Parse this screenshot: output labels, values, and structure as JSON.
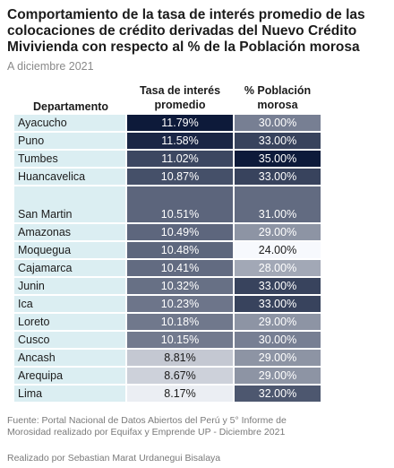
{
  "title": "Comportamiento de la tasa de interés promedio de las colocaciones de crédito derivadas del Nuevo Crédito Mivivienda con respecto al % de la Población morosa",
  "subtitle": "A diciembre 2021",
  "source": "Fuente: Portal Nacional de Datos Abiertos del Perú y 5° Informe de Morosidad realizado por Equifax y Emprende UP - Diciembre 2021",
  "credit": "Realizado por Sebastian Marat Urdanegui Bisalaya",
  "chart_data": {
    "type": "heatmap",
    "columns": [
      "Departamento",
      "Tasa de interés promedio",
      "% Población morosa"
    ],
    "rows": [
      {
        "dept": "Ayacucho",
        "rate": "11.79%",
        "pct": "30.00%",
        "rate_value": 11.79,
        "pct_value": 30
      },
      {
        "dept": "Puno",
        "rate": "11.58%",
        "pct": "33.00%",
        "rate_value": 11.58,
        "pct_value": 33
      },
      {
        "dept": "Tumbes",
        "rate": "11.02%",
        "pct": "35.00%",
        "rate_value": 11.02,
        "pct_value": 35
      },
      {
        "dept": "Huancavelica",
        "rate": "10.87%",
        "pct": "33.00%",
        "rate_value": 10.87,
        "pct_value": 33
      },
      {
        "dept": "San Martin",
        "rate": "10.51%",
        "pct": "31.00%",
        "rate_value": 10.51,
        "pct_value": 31
      },
      {
        "dept": "Amazonas",
        "rate": "10.49%",
        "pct": "29.00%",
        "rate_value": 10.49,
        "pct_value": 29
      },
      {
        "dept": "Moquegua",
        "rate": "10.48%",
        "pct": "24.00%",
        "rate_value": 10.48,
        "pct_value": 24
      },
      {
        "dept": "Cajamarca",
        "rate": "10.41%",
        "pct": "28.00%",
        "rate_value": 10.41,
        "pct_value": 28
      },
      {
        "dept": "Junin",
        "rate": "10.32%",
        "pct": "33.00%",
        "rate_value": 10.32,
        "pct_value": 33
      },
      {
        "dept": "Ica",
        "rate": "10.23%",
        "pct": "33.00%",
        "rate_value": 10.23,
        "pct_value": 33
      },
      {
        "dept": "Loreto",
        "rate": "10.18%",
        "pct": "29.00%",
        "rate_value": 10.18,
        "pct_value": 29
      },
      {
        "dept": "Cusco",
        "rate": "10.15%",
        "pct": "30.00%",
        "rate_value": 10.15,
        "pct_value": 30
      },
      {
        "dept": "Ancash",
        "rate": "8.81%",
        "pct": "29.00%",
        "rate_value": 8.81,
        "pct_value": 29
      },
      {
        "dept": "Arequipa",
        "rate": "8.67%",
        "pct": "29.00%",
        "rate_value": 8.67,
        "pct_value": 29
      },
      {
        "dept": "Lima",
        "rate": "8.17%",
        "pct": "32.00%",
        "rate_value": 8.17,
        "pct_value": 32
      }
    ],
    "color_scale": {
      "low": "#f7f9fd",
      "high": "#0d1a3a"
    }
  }
}
